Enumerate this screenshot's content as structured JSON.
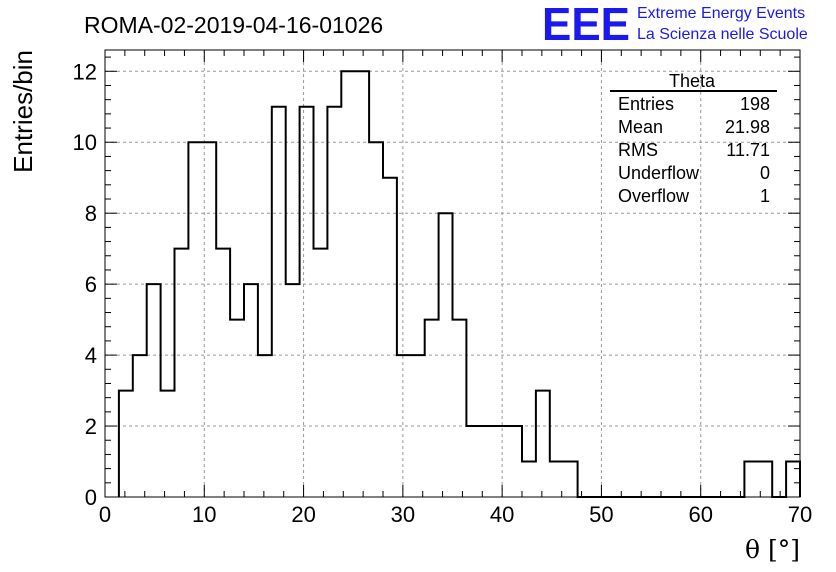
{
  "header": {
    "run_title": "ROMA-02-2019-04-16-01026",
    "logo_text": "EEE",
    "logo_line1": "Extreme Energy Events",
    "logo_line2": "La Scienza nelle Scuole",
    "logo_color": "#1a1aee"
  },
  "chart_data": {
    "type": "histogram",
    "xlabel": "θ [°]",
    "ylabel": "Entries/bin",
    "xlim": [
      0,
      70
    ],
    "ylim": [
      0,
      12.6
    ],
    "xticks": [
      0,
      10,
      20,
      30,
      40,
      50,
      60,
      70
    ],
    "yticks": [
      0,
      2,
      4,
      6,
      8,
      10,
      12
    ],
    "grid": true,
    "bin_width": 1.4,
    "bin_start": 1.4,
    "counts": [
      3,
      4,
      6,
      3,
      7,
      10,
      10,
      7,
      5,
      6,
      4,
      11,
      6,
      11,
      7,
      11,
      12,
      12,
      10,
      9,
      4,
      4,
      5,
      8,
      5,
      2,
      2,
      2,
      2,
      1,
      3,
      1,
      1,
      0,
      0,
      0,
      0,
      0,
      0,
      0,
      0,
      0,
      0,
      0,
      0,
      1,
      1,
      0,
      1
    ],
    "line_color": "#000000",
    "stats_box": {
      "name": "Theta",
      "rows": [
        {
          "label": "Entries",
          "value": "198"
        },
        {
          "label": "Mean",
          "value": "21.98"
        },
        {
          "label": "RMS",
          "value": "11.71"
        },
        {
          "label": "Underflow",
          "value": "0"
        },
        {
          "label": "Overflow",
          "value": "1"
        }
      ]
    }
  }
}
